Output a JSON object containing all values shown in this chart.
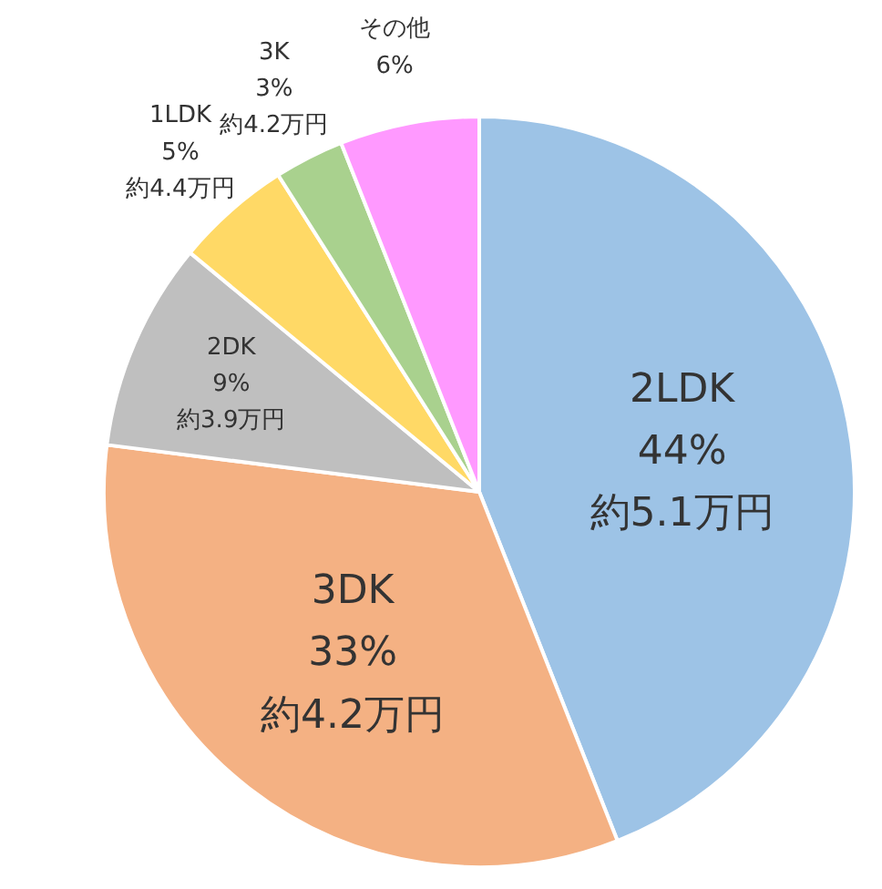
{
  "chart_data": {
    "type": "pie",
    "categories": [
      "2LDK",
      "3DK",
      "2DK",
      "1LDK",
      "3K",
      "その他"
    ],
    "values": [
      44,
      33,
      9,
      5,
      3,
      6
    ],
    "colors": [
      "#9dc3e6",
      "#f4b183",
      "#bfbfbf",
      "#ffd966",
      "#a9d18e",
      "#ff99ff"
    ],
    "value_labels": [
      "44%",
      "33%",
      "9%",
      "5%",
      "3%",
      "6%"
    ],
    "annotations": [
      "約5.1万円",
      "約4.2万円",
      "約3.9万円",
      "約4.4万円",
      "約4.2万円"
    ],
    "legend": false
  }
}
